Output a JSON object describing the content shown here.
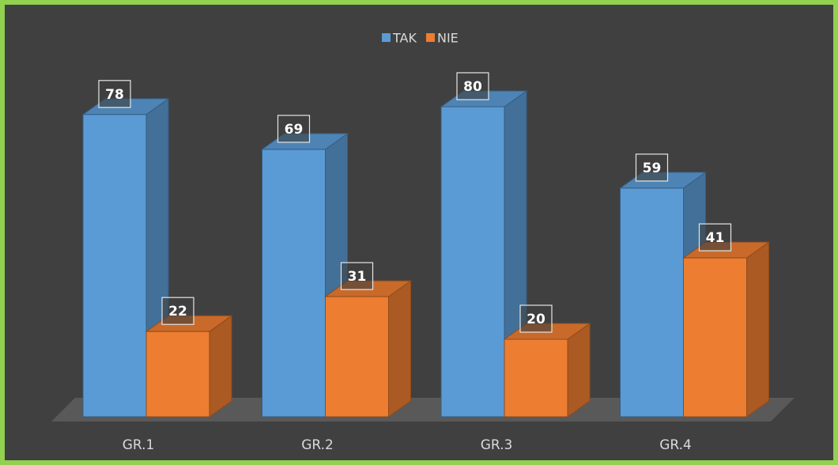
{
  "chart_data": {
    "type": "bar3d",
    "categories": [
      "GR.1",
      "GR.2",
      "GR.3",
      "GR.4"
    ],
    "series": [
      {
        "name": "TAK",
        "color": "#5b9bd5",
        "values": [
          78,
          69,
          80,
          59
        ]
      },
      {
        "name": "NIE",
        "color": "#ed7d31",
        "values": [
          22,
          31,
          20,
          41
        ]
      }
    ],
    "legend": "top"
  }
}
